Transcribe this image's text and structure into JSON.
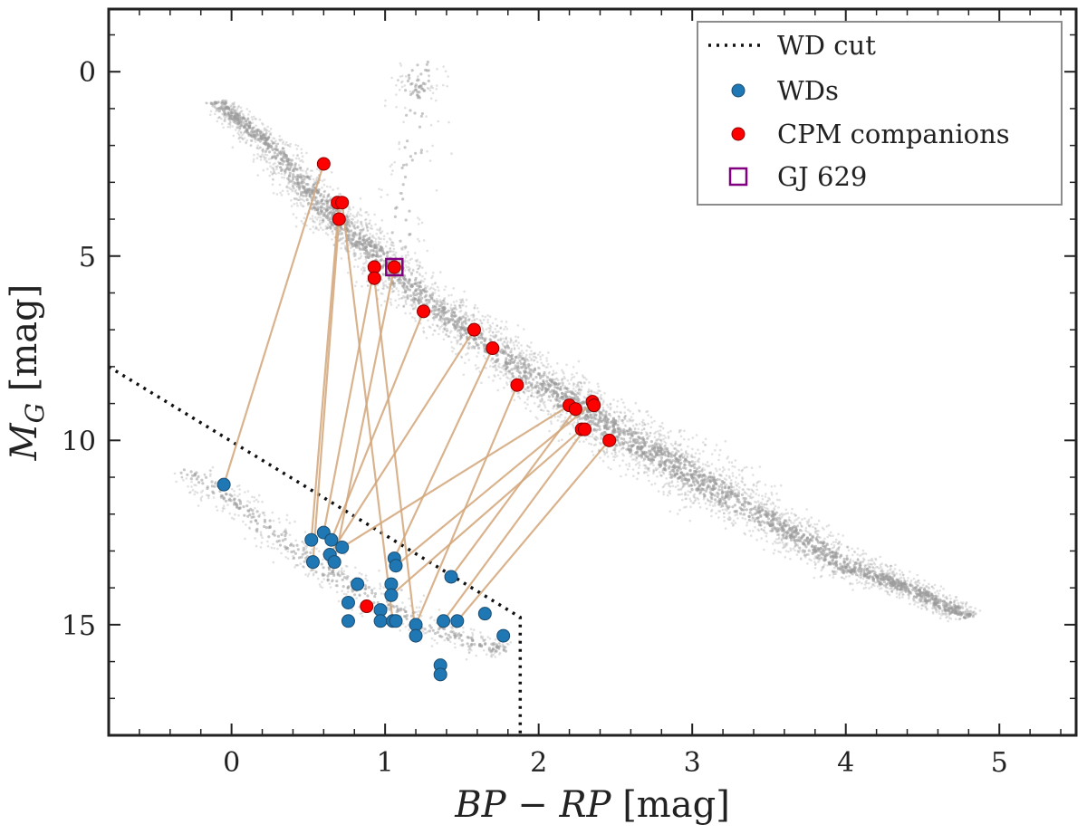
{
  "chart_data": {
    "type": "scatter",
    "title": "",
    "xlabel": {
      "main": "BP − RP",
      "unit": " [mag]"
    },
    "ylabel": {
      "main": "M",
      "sub": "G",
      "unit": " [mag]"
    },
    "xlim": [
      -0.8,
      5.5
    ],
    "ylim": [
      18.0,
      -1.7
    ],
    "y_inverted": true,
    "xticks": [
      0,
      1,
      2,
      3,
      4,
      5
    ],
    "yticks": [
      0,
      5,
      10,
      15
    ],
    "xtick_labels": [
      "0",
      "1",
      "2",
      "3",
      "4",
      "5"
    ],
    "ytick_labels": [
      "0",
      "5",
      "10",
      "15"
    ],
    "x_minor_step": 0.2,
    "y_minor_step": 1,
    "grid": false,
    "legend_position": "top-right",
    "colors": {
      "background_stars": "#9a9a9a",
      "wd": "#1f77b4",
      "cpm": "#ff0000",
      "link": "#d2a679",
      "gj629": "#800080",
      "wd_cut": "#111111"
    },
    "legend": [
      {
        "label": "WD cut",
        "style": "dotted-line"
      },
      {
        "label": "WDs",
        "style": "blue-dot"
      },
      {
        "label": "CPM companions",
        "style": "red-dot"
      },
      {
        "label": "GJ 629",
        "style": "purple-square"
      }
    ],
    "wd_cut": [
      [
        -0.8,
        8.0
      ],
      [
        1.88,
        14.8
      ],
      [
        1.88,
        18.0
      ]
    ],
    "gj629": {
      "x": 1.06,
      "y": 5.3
    },
    "background_population": [
      {
        "name": "main sequence",
        "path": [
          [
            -0.1,
            0.8
          ],
          [
            0.3,
            2.2
          ],
          [
            0.6,
            3.7
          ],
          [
            0.9,
            4.8
          ],
          [
            1.2,
            6.0
          ],
          [
            1.6,
            7.2
          ],
          [
            2.0,
            8.4
          ],
          [
            2.3,
            9.2
          ],
          [
            2.6,
            10.0
          ],
          [
            2.9,
            10.7
          ],
          [
            3.2,
            11.5
          ],
          [
            3.6,
            12.4
          ],
          [
            4.0,
            13.4
          ],
          [
            4.4,
            14.0
          ],
          [
            4.8,
            14.8
          ]
        ],
        "width": [
          0.2,
          0.4,
          0.55,
          0.55,
          0.6,
          0.6,
          0.65,
          0.7,
          0.8,
          0.85,
          0.75,
          0.6,
          0.5,
          0.4,
          0.3
        ],
        "count": 5500
      },
      {
        "name": "giant branch",
        "path": [
          [
            1.1,
            5.0
          ],
          [
            1.15,
            3.0
          ],
          [
            1.2,
            1.5
          ],
          [
            1.2,
            0.5
          ],
          [
            1.25,
            -0.3
          ]
        ],
        "width": [
          0.5,
          0.5,
          0.5,
          0.5,
          0.5
        ],
        "count": 110
      },
      {
        "name": "red clump",
        "path": [
          [
            1.15,
            0.1
          ],
          [
            1.25,
            0.6
          ]
        ],
        "width": [
          0.3,
          0.3
        ],
        "count": 40
      },
      {
        "name": "white dwarf sequence",
        "path": [
          [
            -0.3,
            10.8
          ],
          [
            0.0,
            11.6
          ],
          [
            0.3,
            12.6
          ],
          [
            0.6,
            13.5
          ],
          [
            0.9,
            14.2
          ],
          [
            1.2,
            14.9
          ],
          [
            1.5,
            15.4
          ],
          [
            1.8,
            15.7
          ]
        ],
        "width": [
          0.4,
          0.45,
          0.5,
          0.5,
          0.5,
          0.5,
          0.45,
          0.4
        ],
        "count": 650
      }
    ],
    "series": [
      {
        "name": "WDs",
        "points": [
          [
            -0.05,
            11.2
          ],
          [
            0.52,
            12.7
          ],
          [
            0.53,
            13.3
          ],
          [
            0.6,
            12.5
          ],
          [
            0.65,
            12.7
          ],
          [
            0.64,
            13.1
          ],
          [
            0.67,
            13.3
          ],
          [
            0.72,
            12.9
          ],
          [
            0.76,
            14.4
          ],
          [
            0.76,
            14.9
          ],
          [
            0.82,
            13.9
          ],
          [
            0.97,
            14.6
          ],
          [
            0.97,
            14.9
          ],
          [
            1.04,
            13.9
          ],
          [
            1.04,
            14.2
          ],
          [
            1.05,
            14.9
          ],
          [
            1.06,
            13.2
          ],
          [
            1.07,
            13.4
          ],
          [
            1.07,
            14.9
          ],
          [
            1.2,
            15.0
          ],
          [
            1.2,
            15.3
          ],
          [
            1.36,
            16.1
          ],
          [
            1.36,
            16.35
          ],
          [
            1.38,
            14.9
          ],
          [
            1.43,
            13.7
          ],
          [
            1.47,
            14.9
          ],
          [
            1.65,
            14.7
          ],
          [
            1.77,
            15.3
          ]
        ]
      },
      {
        "name": "CPM companions",
        "points": [
          [
            0.6,
            2.5
          ],
          [
            0.69,
            3.55
          ],
          [
            0.72,
            3.55
          ],
          [
            0.7,
            4.0
          ],
          [
            0.93,
            5.3
          ],
          [
            0.93,
            5.6
          ],
          [
            1.06,
            5.3
          ],
          [
            1.25,
            6.5
          ],
          [
            1.58,
            7.0
          ],
          [
            1.7,
            7.5
          ],
          [
            1.86,
            8.5
          ],
          [
            2.2,
            9.05
          ],
          [
            2.24,
            9.15
          ],
          [
            2.28,
            9.7
          ],
          [
            2.3,
            9.7
          ],
          [
            2.35,
            8.95
          ],
          [
            2.36,
            9.05
          ],
          [
            2.46,
            10.0
          ],
          [
            0.88,
            14.5
          ]
        ]
      }
    ],
    "links": [
      [
        -0.05,
        11.2,
        0.6,
        2.5
      ],
      [
        0.52,
        12.7,
        0.7,
        3.55
      ],
      [
        0.53,
        13.3,
        0.7,
        4.0
      ],
      [
        0.6,
        12.5,
        0.93,
        5.3
      ],
      [
        0.65,
        12.7,
        1.25,
        6.5
      ],
      [
        0.64,
        13.1,
        1.58,
        7.0
      ],
      [
        0.67,
        13.3,
        1.06,
        5.3
      ],
      [
        0.72,
        12.9,
        2.2,
        9.05
      ],
      [
        1.06,
        13.2,
        1.7,
        7.5
      ],
      [
        1.07,
        13.4,
        2.35,
        9.0
      ],
      [
        1.43,
        13.7,
        2.24,
        9.15
      ],
      [
        1.47,
        14.9,
        2.46,
        10.0
      ],
      [
        1.38,
        14.9,
        2.3,
        9.7
      ],
      [
        1.2,
        15.0,
        1.86,
        8.5
      ],
      [
        1.04,
        14.2,
        2.28,
        9.7
      ],
      [
        1.2,
        15.3,
        0.93,
        5.6
      ],
      [
        1.05,
        14.9,
        0.72,
        3.55
      ]
    ]
  }
}
